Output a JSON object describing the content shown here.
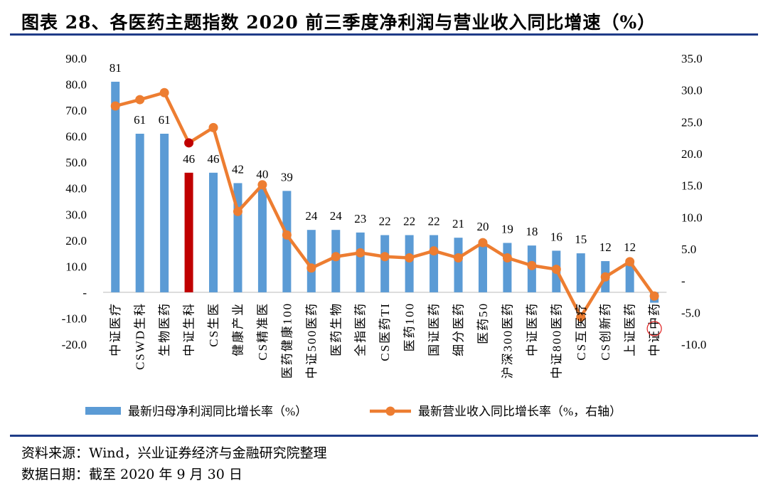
{
  "title": "图表 28、各医药主题指数 2020 前三季度净利润与营业收入同比增速（%）",
  "source": "资料来源：Wind，兴业证券经济与金融研究院整理",
  "date_note": "数据日期：截至 2020 年 9 月 30 日",
  "chart_data": {
    "type": "bar+line",
    "categories": [
      "中证医疗",
      "CSWD生科",
      "生物医药",
      "中证生科",
      "CS生医",
      "健康产业",
      "CS精准医",
      "医药健康100",
      "中证500医药",
      "医药生物",
      "全指医药",
      "CS医药TI",
      "医药100",
      "国证医药",
      "细分医药",
      "医药50",
      "沪深300医药",
      "中证医药",
      "中证800医药",
      "CS互医疗",
      "CS创新药",
      "上证医药",
      "中证中药"
    ],
    "series": [
      {
        "name": "最新归母净利润同比增长率（%）",
        "type": "bar",
        "axis": "left",
        "color": "#5b9bd5",
        "highlight_color": "#c00000",
        "highlight_index": 3,
        "values": [
          81,
          61,
          61,
          46,
          46,
          42,
          40,
          39,
          24,
          24,
          23,
          22,
          22,
          22,
          21,
          20,
          19,
          18,
          16,
          15,
          12,
          12,
          -4
        ],
        "labels": [
          "81",
          "61",
          "61",
          "46",
          "46",
          "42",
          "40",
          "39",
          "24",
          "24",
          "23",
          "22",
          "22",
          "22",
          "21",
          "20",
          "19",
          "18",
          "16",
          "15",
          "12",
          "12",
          ""
        ]
      },
      {
        "name": "最新营业收入同比增长率（%，右轴）",
        "type": "line",
        "axis": "right",
        "color": "#ed7d31",
        "highlight_color": "#c00000",
        "highlight_index": 3,
        "values": [
          27.5,
          28.5,
          29.6,
          21.7,
          24.1,
          10.9,
          15.1,
          7.2,
          2.0,
          3.8,
          4.4,
          3.8,
          3.6,
          4.7,
          3.6,
          6.0,
          3.6,
          2.4,
          1.8,
          -5.7,
          0.6,
          3.0,
          -2.4
        ]
      }
    ],
    "left_axis": {
      "ylim": [
        -20,
        90
      ],
      "ticks": [
        "90.0",
        "80.0",
        "70.0",
        "60.0",
        "50.0",
        "40.0",
        "30.0",
        "20.0",
        "10.0",
        "-",
        "-10.0",
        "-20.0"
      ]
    },
    "right_axis": {
      "ylim": [
        -10,
        35
      ],
      "ticks": [
        "35.0",
        "30.0",
        "25.0",
        "20.0",
        "15.0",
        "10.0",
        "5.0",
        "-",
        "-5.0",
        "-10.0"
      ]
    },
    "grid": false,
    "legend_placement": "bottom"
  }
}
